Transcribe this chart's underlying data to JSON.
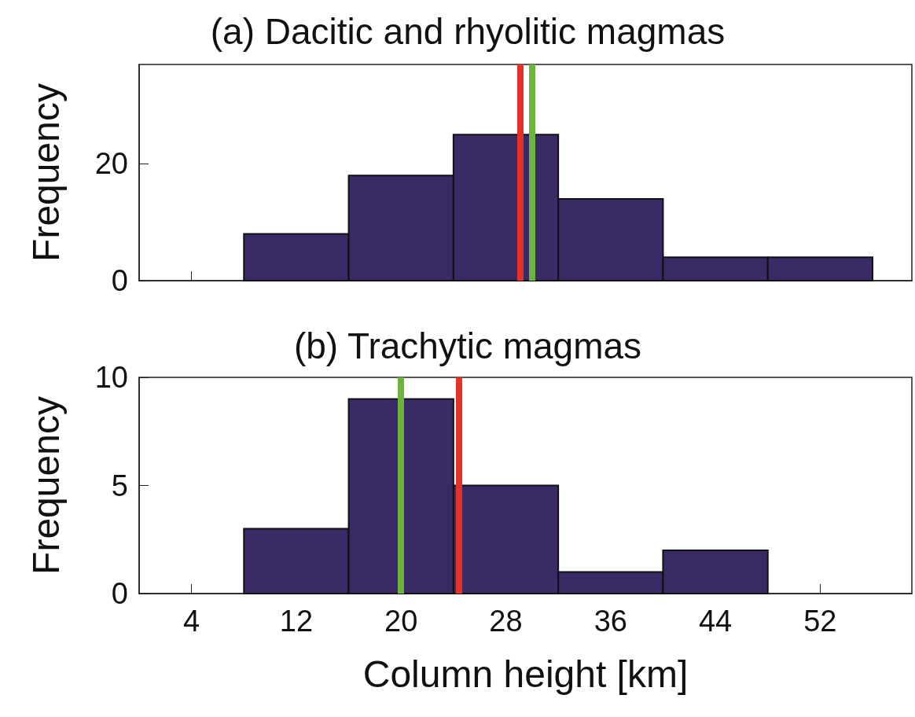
{
  "chart_data": [
    {
      "type": "histogram",
      "title": "(a) Dacitic and rhyolitic magmas",
      "ylabel": "Frequency",
      "bins": [
        8,
        16,
        24,
        32,
        40,
        48,
        56
      ],
      "values": [
        8,
        18,
        25,
        14,
        4,
        4
      ],
      "color": "#3a2a66",
      "xlim": [
        0,
        59
      ],
      "xticks": [
        4,
        12,
        20,
        28,
        36,
        44,
        52
      ],
      "ylim": [
        0,
        37
      ],
      "yticks": [
        0,
        20
      ],
      "tick_labels": "y",
      "ref_lines": [
        {
          "axis": "x",
          "value": 29.1,
          "color": "#e53228"
        },
        {
          "axis": "x",
          "value": 30,
          "color": "#6cb43c"
        }
      ]
    },
    {
      "type": "histogram",
      "title": "(b) Trachytic magmas",
      "xlabel": "Column height [km]",
      "ylabel": "Frequency",
      "bins": [
        8,
        16,
        24,
        32,
        40,
        48,
        56
      ],
      "values": [
        3,
        9,
        5,
        1,
        2,
        0
      ],
      "color": "#3a2a66",
      "xlim": [
        0,
        59
      ],
      "xticks": [
        4,
        12,
        20,
        28,
        36,
        44,
        52
      ],
      "ylim": [
        0,
        10
      ],
      "yticks": [
        0,
        5,
        10
      ],
      "ref_lines": [
        {
          "axis": "x",
          "value": 20,
          "color": "#6cb43c"
        },
        {
          "axis": "x",
          "value": 24.4,
          "color": "#e53228"
        }
      ]
    }
  ]
}
